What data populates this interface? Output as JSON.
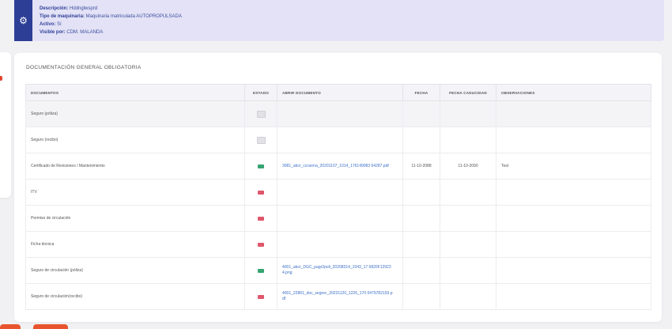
{
  "info": {
    "lines": [
      {
        "label": "Descripción",
        "value": "Hddnglwsprd"
      },
      {
        "label": "Tipo de maquinaria",
        "value": "Maquinaria matriculada AUTOPROPULSADA"
      },
      {
        "label": "Activo",
        "value": "Sí"
      },
      {
        "label": "Visible por",
        "value": "CDM. MALANDA"
      }
    ]
  },
  "docs": {
    "title": "DOCUMENTACIÓN GENERAL OBLIGATORIA",
    "columns": {
      "documentos": "DOCUMENTOS",
      "estado": "ESTADO",
      "abrir": "ABRIR DOCUMENTO",
      "fecha": "FECHA",
      "caducidad": "FECHA CADUCIDAD",
      "observaciones": "OBSERVACIONES"
    },
    "rows": [
      {
        "name": "Seguro (póliza)",
        "status": "gray",
        "link": "",
        "fecha": "",
        "caducidad": "",
        "obs": "",
        "shaded": true
      },
      {
        "name": "Seguro (recibo)",
        "status": "gray",
        "link": "",
        "fecha": "",
        "caducidad": "",
        "obs": ""
      },
      {
        "name": "Certificado de Revisiones / Mantenimiento",
        "status": "green",
        "link": "3081_abcr_ccrarrna_20201107_1014_176149083 64287.pdf",
        "fecha": "11-10-2088",
        "caducidad": "11-10-2090",
        "obs": "Test"
      },
      {
        "name": "ITV",
        "status": "red",
        "link": "",
        "fecha": "",
        "caducidad": "",
        "obs": ""
      },
      {
        "name": "Permiso de circulación",
        "status": "red",
        "link": "",
        "fecha": "",
        "caducidad": "",
        "obs": ""
      },
      {
        "name": "Ficha técnica",
        "status": "red",
        "link": "",
        "fecha": "",
        "caducidad": "",
        "obs": ""
      },
      {
        "name": "Seguro de circulación (póliza)",
        "status": "green",
        "link": "4001_abcr_DGC_pagr2poli_20208314_1043_17 6820F129234.png",
        "fecha": "",
        "caducidad": "",
        "obs": ""
      },
      {
        "name": "Seguro de circulación(recibo)",
        "status": "red",
        "link": "4001_22861_doc_segrec_20231120_1226_170 0479782193.pdf",
        "fecha": "",
        "caducidad": "",
        "obs": ""
      }
    ]
  },
  "colors": {
    "accent": "#2d3e97",
    "info_bg": "#e3e2f6",
    "ok": "#36a571",
    "missing": "#e0566b",
    "orange": "#e8542e"
  }
}
